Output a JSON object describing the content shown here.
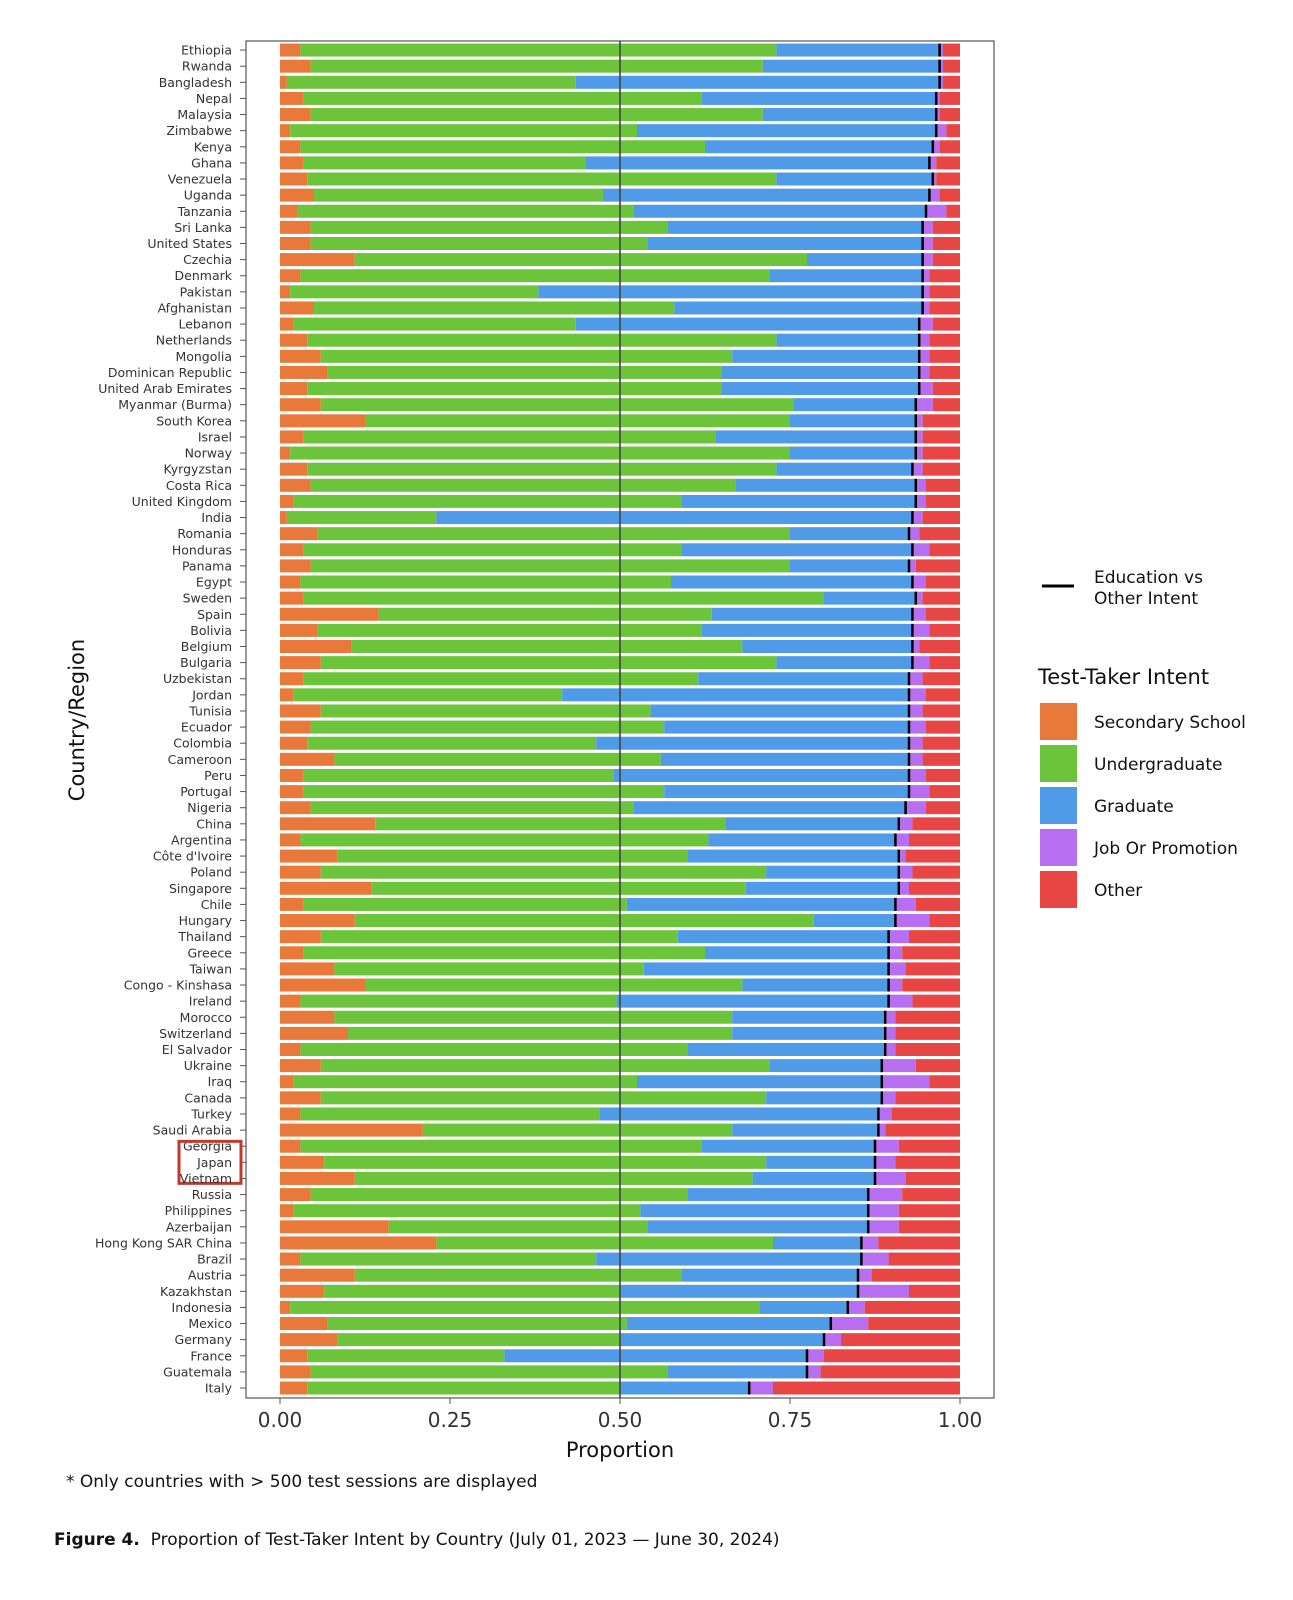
{
  "chart_data": {
    "type": "bar",
    "orientation": "horizontal",
    "stacked": true,
    "xlabel": "Proportion",
    "ylabel": "Country/Region",
    "xlim": [
      0,
      1
    ],
    "xticks": [
      "0.00",
      "0.25",
      "0.50",
      "0.75",
      "1.00"
    ],
    "xtick_values": [
      0,
      0.25,
      0.5,
      0.75,
      1
    ],
    "reference_line_x": 0.5,
    "legend_position": "right",
    "legend_line_label": "Education vs\nOther Intent",
    "legend_title": "Test-Taker Intent",
    "highlighted_category": "Japan",
    "highlight_color": "#c0392b",
    "series": [
      {
        "name": "Secondary School",
        "color": "#e8793a"
      },
      {
        "name": "Undergraduate",
        "color": "#6cc43b"
      },
      {
        "name": "Graduate",
        "color": "#4f9be8"
      },
      {
        "name": "Job Or Promotion",
        "color": "#b76ef0"
      },
      {
        "name": "Other",
        "color": "#e84545"
      }
    ],
    "categories": [
      "Ethiopia",
      "Rwanda",
      "Bangladesh",
      "Nepal",
      "Malaysia",
      "Zimbabwe",
      "Kenya",
      "Ghana",
      "Venezuela",
      "Uganda",
      "Tanzania",
      "Sri Lanka",
      "United States",
      "Czechia",
      "Denmark",
      "Pakistan",
      "Afghanistan",
      "Lebanon",
      "Netherlands",
      "Mongolia",
      "Dominican Republic",
      "United Arab Emirates",
      "Myanmar (Burma)",
      "South Korea",
      "Israel",
      "Norway",
      "Kyrgyzstan",
      "Costa Rica",
      "United Kingdom",
      "India",
      "Romania",
      "Honduras",
      "Panama",
      "Egypt",
      "Sweden",
      "Spain",
      "Bolivia",
      "Belgium",
      "Bulgaria",
      "Uzbekistan",
      "Jordan",
      "Tunisia",
      "Ecuador",
      "Colombia",
      "Cameroon",
      "Peru",
      "Portugal",
      "Nigeria",
      "China",
      "Argentina",
      "Côte d'Ivoire",
      "Poland",
      "Singapore",
      "Chile",
      "Hungary",
      "Thailand",
      "Greece",
      "Taiwan",
      "Congo - Kinshasa",
      "Ireland",
      "Morocco",
      "Switzerland",
      "El Salvador",
      "Ukraine",
      "Iraq",
      "Canada",
      "Turkey",
      "Saudi Arabia",
      "Georgia",
      "Japan",
      "Vietnam",
      "Russia",
      "Philippines",
      "Azerbaijan",
      "Hong Kong SAR China",
      "Brazil",
      "Austria",
      "Kazakhstan",
      "Indonesia",
      "Mexico",
      "Germany",
      "France",
      "Guatemala",
      "Italy"
    ],
    "values": [
      [
        0.03,
        0.7,
        0.24,
        0.005,
        0.025
      ],
      [
        0.045,
        0.665,
        0.26,
        0.005,
        0.025
      ],
      [
        0.01,
        0.425,
        0.535,
        0.005,
        0.025
      ],
      [
        0.035,
        0.585,
        0.345,
        0.005,
        0.03
      ],
      [
        0.045,
        0.665,
        0.255,
        0.005,
        0.03
      ],
      [
        0.015,
        0.51,
        0.44,
        0.015,
        0.02
      ],
      [
        0.03,
        0.595,
        0.335,
        0.01,
        0.03
      ],
      [
        0.035,
        0.415,
        0.505,
        0.01,
        0.035
      ],
      [
        0.04,
        0.69,
        0.23,
        0.005,
        0.035
      ],
      [
        0.05,
        0.425,
        0.48,
        0.015,
        0.03
      ],
      [
        0.025,
        0.495,
        0.43,
        0.03,
        0.02
      ],
      [
        0.045,
        0.525,
        0.375,
        0.015,
        0.04
      ],
      [
        0.045,
        0.495,
        0.405,
        0.015,
        0.04
      ],
      [
        0.11,
        0.665,
        0.17,
        0.015,
        0.04
      ],
      [
        0.03,
        0.69,
        0.225,
        0.01,
        0.045
      ],
      [
        0.015,
        0.365,
        0.565,
        0.01,
        0.045
      ],
      [
        0.05,
        0.53,
        0.365,
        0.01,
        0.045
      ],
      [
        0.02,
        0.415,
        0.505,
        0.02,
        0.04
      ],
      [
        0.04,
        0.69,
        0.21,
        0.015,
        0.045
      ],
      [
        0.06,
        0.605,
        0.275,
        0.015,
        0.045
      ],
      [
        0.07,
        0.58,
        0.29,
        0.015,
        0.045
      ],
      [
        0.04,
        0.61,
        0.29,
        0.02,
        0.04
      ],
      [
        0.06,
        0.695,
        0.18,
        0.025,
        0.04
      ],
      [
        0.125,
        0.625,
        0.185,
        0.01,
        0.055
      ],
      [
        0.035,
        0.605,
        0.295,
        0.01,
        0.055
      ],
      [
        0.015,
        0.735,
        0.185,
        0.01,
        0.055
      ],
      [
        0.04,
        0.69,
        0.2,
        0.015,
        0.055
      ],
      [
        0.045,
        0.625,
        0.265,
        0.015,
        0.05
      ],
      [
        0.02,
        0.57,
        0.345,
        0.015,
        0.05
      ],
      [
        0.01,
        0.22,
        0.7,
        0.015,
        0.055
      ],
      [
        0.055,
        0.695,
        0.175,
        0.015,
        0.06
      ],
      [
        0.035,
        0.555,
        0.34,
        0.025,
        0.045
      ],
      [
        0.045,
        0.705,
        0.175,
        0.01,
        0.065
      ],
      [
        0.03,
        0.545,
        0.355,
        0.02,
        0.05
      ],
      [
        0.035,
        0.765,
        0.135,
        0.01,
        0.055
      ],
      [
        0.145,
        0.49,
        0.295,
        0.02,
        0.05
      ],
      [
        0.055,
        0.565,
        0.31,
        0.025,
        0.045
      ],
      [
        0.105,
        0.575,
        0.25,
        0.01,
        0.06
      ],
      [
        0.06,
        0.67,
        0.2,
        0.025,
        0.045
      ],
      [
        0.035,
        0.58,
        0.31,
        0.02,
        0.055
      ],
      [
        0.02,
        0.395,
        0.51,
        0.025,
        0.05
      ],
      [
        0.06,
        0.485,
        0.38,
        0.02,
        0.055
      ],
      [
        0.045,
        0.52,
        0.36,
        0.025,
        0.05
      ],
      [
        0.04,
        0.425,
        0.46,
        0.02,
        0.055
      ],
      [
        0.08,
        0.48,
        0.365,
        0.02,
        0.055
      ],
      [
        0.035,
        0.455,
        0.435,
        0.025,
        0.05
      ],
      [
        0.035,
        0.53,
        0.36,
        0.03,
        0.045
      ],
      [
        0.045,
        0.475,
        0.4,
        0.03,
        0.05
      ],
      [
        0.14,
        0.515,
        0.255,
        0.02,
        0.07
      ],
      [
        0.03,
        0.6,
        0.275,
        0.02,
        0.075
      ],
      [
        0.085,
        0.515,
        0.31,
        0.01,
        0.08
      ],
      [
        0.06,
        0.655,
        0.195,
        0.02,
        0.07
      ],
      [
        0.135,
        0.55,
        0.225,
        0.015,
        0.075
      ],
      [
        0.035,
        0.475,
        0.395,
        0.03,
        0.065
      ],
      [
        0.11,
        0.675,
        0.12,
        0.05,
        0.045
      ],
      [
        0.06,
        0.525,
        0.31,
        0.03,
        0.075
      ],
      [
        0.035,
        0.59,
        0.27,
        0.02,
        0.085
      ],
      [
        0.08,
        0.455,
        0.36,
        0.025,
        0.08
      ],
      [
        0.125,
        0.555,
        0.215,
        0.02,
        0.085
      ],
      [
        0.03,
        0.465,
        0.4,
        0.035,
        0.07
      ],
      [
        0.08,
        0.585,
        0.225,
        0.015,
        0.095
      ],
      [
        0.1,
        0.565,
        0.225,
        0.015,
        0.095
      ],
      [
        0.03,
        0.57,
        0.29,
        0.015,
        0.095
      ],
      [
        0.06,
        0.66,
        0.165,
        0.05,
        0.065
      ],
      [
        0.02,
        0.505,
        0.36,
        0.07,
        0.045
      ],
      [
        0.06,
        0.655,
        0.17,
        0.02,
        0.095
      ],
      [
        0.03,
        0.44,
        0.41,
        0.02,
        0.1
      ],
      [
        0.21,
        0.455,
        0.215,
        0.01,
        0.11
      ],
      [
        0.03,
        0.59,
        0.255,
        0.035,
        0.09
      ],
      [
        0.065,
        0.65,
        0.16,
        0.03,
        0.095
      ],
      [
        0.11,
        0.585,
        0.18,
        0.045,
        0.08
      ],
      [
        0.045,
        0.555,
        0.265,
        0.05,
        0.085
      ],
      [
        0.02,
        0.51,
        0.335,
        0.045,
        0.09
      ],
      [
        0.16,
        0.38,
        0.325,
        0.045,
        0.09
      ],
      [
        0.23,
        0.495,
        0.13,
        0.025,
        0.12
      ],
      [
        0.03,
        0.435,
        0.39,
        0.04,
        0.105
      ],
      [
        0.11,
        0.48,
        0.26,
        0.02,
        0.13
      ],
      [
        0.065,
        0.435,
        0.35,
        0.075,
        0.075
      ],
      [
        0.015,
        0.69,
        0.13,
        0.025,
        0.14
      ],
      [
        0.07,
        0.44,
        0.3,
        0.055,
        0.135
      ],
      [
        0.085,
        0.415,
        0.3,
        0.025,
        0.175
      ],
      [
        0.04,
        0.29,
        0.445,
        0.025,
        0.2
      ],
      [
        0.045,
        0.525,
        0.205,
        0.02,
        0.205
      ],
      [
        0.04,
        0.46,
        0.19,
        0.035,
        0.275
      ]
    ]
  },
  "note": "* Only countries with > 500 test sessions are displayed",
  "caption": {
    "label": "Figure 4.",
    "text": "Proportion of Test-Taker Intent by Country (July 01, 2023 — June 30, 2024)"
  }
}
